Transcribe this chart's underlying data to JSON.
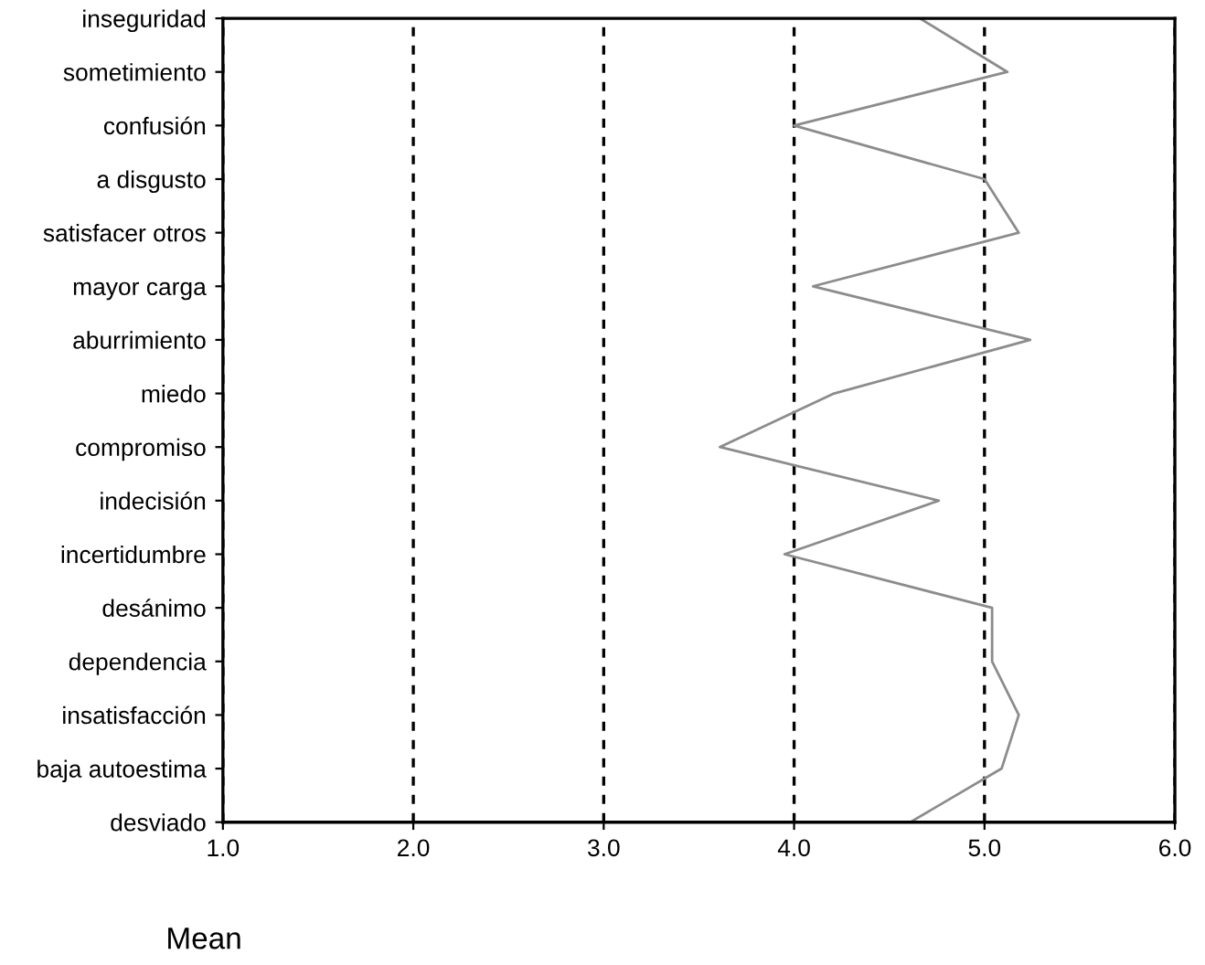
{
  "chart_data": {
    "type": "line",
    "orientation": "horizontal",
    "xlabel": "Mean",
    "categories": [
      "inseguridad",
      "sometimiento",
      "confusión",
      "a disgusto",
      "satisfacer otros",
      "mayor carga",
      "aburrimiento",
      "miedo",
      "compromiso",
      "indecisión",
      "incertidumbre",
      "desánimo",
      "dependencia",
      "insatisfacción",
      "baja autoestima",
      "desviado"
    ],
    "series": [
      {
        "color": "#8c8c8c",
        "values": [
          4.66,
          5.12,
          4.0,
          5.0,
          5.18,
          4.1,
          5.24,
          4.21,
          3.61,
          4.76,
          3.95,
          5.04,
          5.04,
          5.18,
          5.09,
          4.61
        ]
      }
    ],
    "xlim": [
      1,
      6
    ],
    "xticks": [
      {
        "value": 1,
        "label": "1.0"
      },
      {
        "value": 2,
        "label": "2.0"
      },
      {
        "value": 3,
        "label": "3.0"
      },
      {
        "value": 4,
        "label": "4.0"
      },
      {
        "value": 5,
        "label": "5.0"
      },
      {
        "value": 6,
        "label": "6.0"
      }
    ],
    "grid": "x",
    "marker": "none",
    "line_style": "solid"
  }
}
